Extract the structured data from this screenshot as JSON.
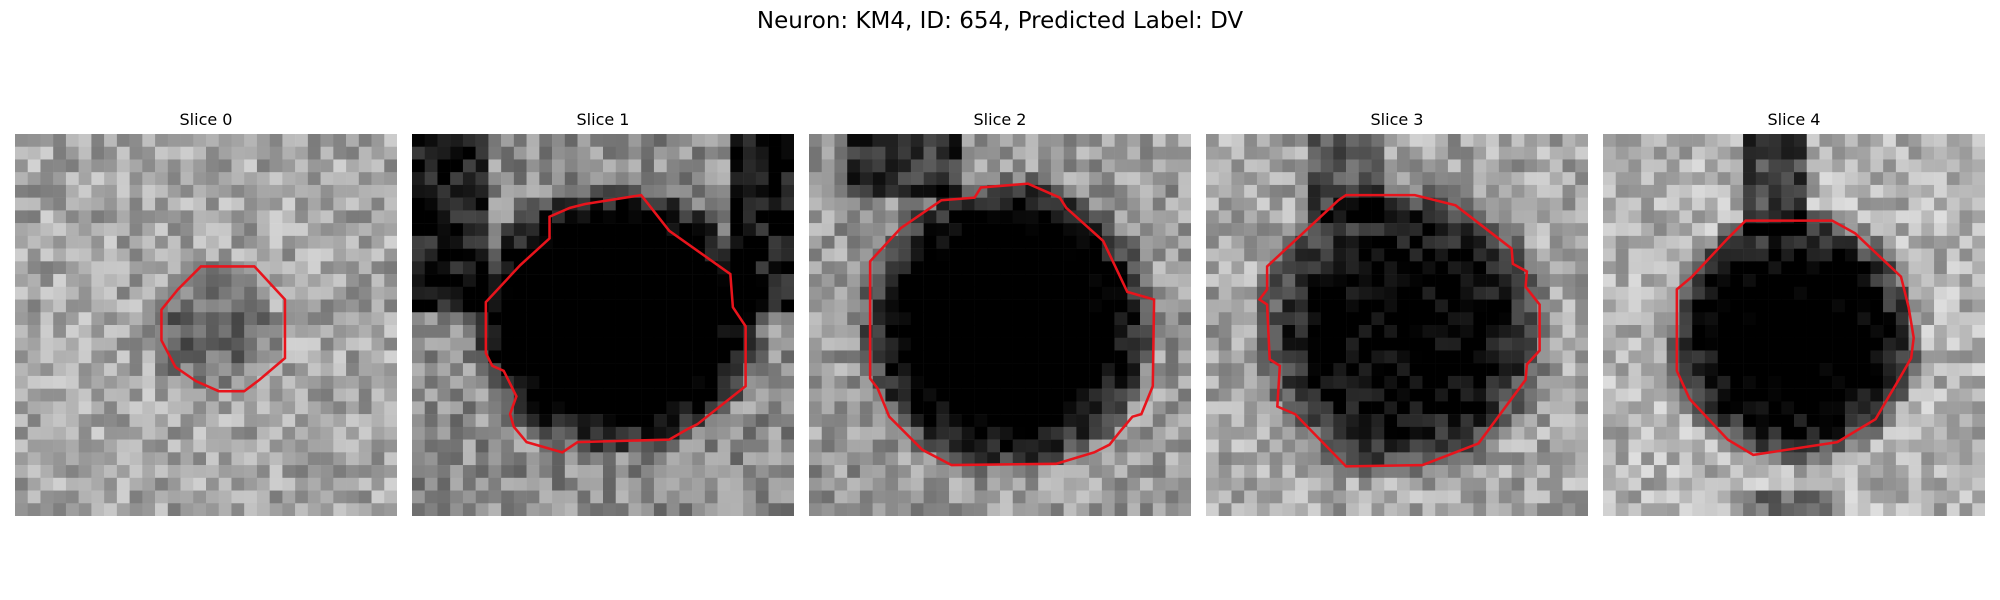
{
  "figure": {
    "title": "Neuron: KM4, ID: 654, Predicted Label: DV"
  },
  "colors": {
    "contour": "#e8141c",
    "background": "#ffffff"
  },
  "panels": [
    {
      "title": "Slice 0",
      "dark_blob": false
    },
    {
      "title": "Slice 1",
      "dark_blob": true
    },
    {
      "title": "Slice 2",
      "dark_blob": true
    },
    {
      "title": "Slice 3",
      "dark_blob": true
    },
    {
      "title": "Slice 4",
      "dark_blob": true
    }
  ]
}
